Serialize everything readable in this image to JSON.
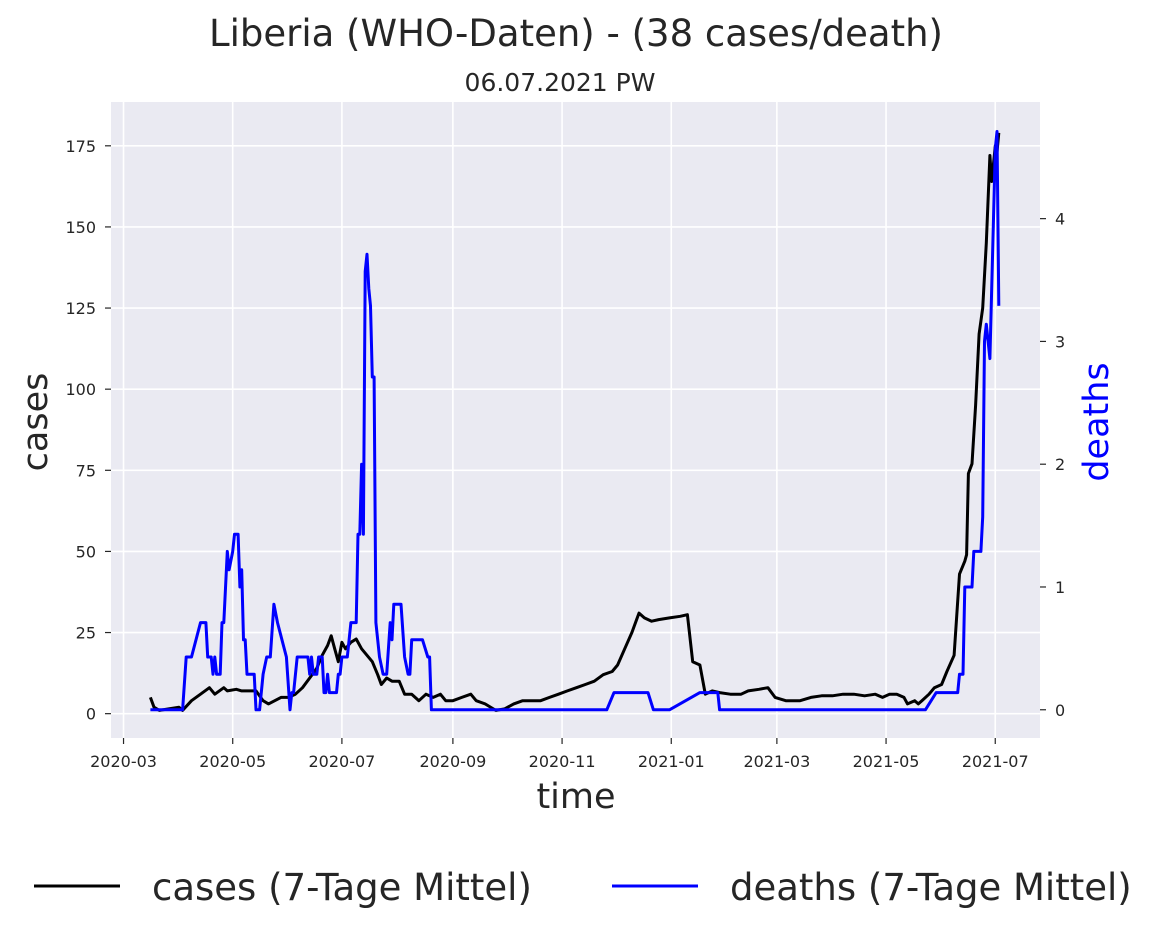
{
  "chart_data": {
    "type": "line",
    "title": "Liberia (WHO-Daten) - (38 cases/death)",
    "subtitle": "06.07.2021 PW",
    "xlabel": "time",
    "ylabel": "cases",
    "y2label": "deaths",
    "x_ticks": [
      "2020-03",
      "2020-05",
      "2020-07",
      "2020-09",
      "2020-11",
      "2021-01",
      "2021-03",
      "2021-05",
      "2021-07"
    ],
    "xlim": [
      "2020-02-23",
      "2021-07-26"
    ],
    "y_ticks": [
      0,
      25,
      50,
      75,
      100,
      125,
      150,
      175
    ],
    "ylim": [
      -7.5,
      188.5
    ],
    "y2_ticks": [
      0,
      1,
      2,
      3,
      4
    ],
    "y2lim": [
      -0.23,
      4.95
    ],
    "grid": true,
    "legend_position": "bottom-center",
    "colors": {
      "cases": "#000000",
      "deaths": "#0000ff",
      "plot_bg": "#eaeaf2",
      "grid": "#ffffff"
    },
    "series": [
      {
        "name": "cases (7-Tage Mittel)",
        "axis": "left",
        "points": [
          [
            "2020-03-16",
            5
          ],
          [
            "2020-03-18",
            2
          ],
          [
            "2020-03-21",
            1
          ],
          [
            "2020-04-01",
            2
          ],
          [
            "2020-04-03",
            1
          ],
          [
            "2020-04-08",
            4
          ],
          [
            "2020-04-13",
            6
          ],
          [
            "2020-04-18",
            8
          ],
          [
            "2020-04-21",
            6
          ],
          [
            "2020-04-26",
            8
          ],
          [
            "2020-04-28",
            7
          ],
          [
            "2020-05-03",
            7.5
          ],
          [
            "2020-05-06",
            7
          ],
          [
            "2020-05-10",
            7
          ],
          [
            "2020-05-14",
            7
          ],
          [
            "2020-05-18",
            4
          ],
          [
            "2020-05-21",
            3
          ],
          [
            "2020-05-28",
            5
          ],
          [
            "2020-06-01",
            5
          ],
          [
            "2020-06-05",
            6
          ],
          [
            "2020-06-09",
            8
          ],
          [
            "2020-06-13",
            11
          ],
          [
            "2020-06-17",
            14
          ],
          [
            "2020-06-20",
            18
          ],
          [
            "2020-06-23",
            21
          ],
          [
            "2020-06-25",
            24
          ],
          [
            "2020-06-27",
            20
          ],
          [
            "2020-06-29",
            16
          ],
          [
            "2020-07-01",
            22
          ],
          [
            "2020-07-03",
            20
          ],
          [
            "2020-07-06",
            22
          ],
          [
            "2020-07-09",
            23
          ],
          [
            "2020-07-12",
            20
          ],
          [
            "2020-07-15",
            18
          ],
          [
            "2020-07-18",
            16
          ],
          [
            "2020-07-21",
            12
          ],
          [
            "2020-07-23",
            9
          ],
          [
            "2020-07-26",
            11
          ],
          [
            "2020-07-29",
            10
          ],
          [
            "2020-08-02",
            10
          ],
          [
            "2020-08-05",
            6
          ],
          [
            "2020-08-09",
            6
          ],
          [
            "2020-08-13",
            4
          ],
          [
            "2020-08-17",
            6
          ],
          [
            "2020-08-21",
            5
          ],
          [
            "2020-08-25",
            6
          ],
          [
            "2020-08-28",
            4
          ],
          [
            "2020-09-01",
            4
          ],
          [
            "2020-09-06",
            5
          ],
          [
            "2020-09-11",
            6
          ],
          [
            "2020-09-14",
            4
          ],
          [
            "2020-09-19",
            3
          ],
          [
            "2020-09-25",
            1
          ],
          [
            "2020-09-30",
            1.5
          ],
          [
            "2020-10-05",
            3
          ],
          [
            "2020-10-10",
            4
          ],
          [
            "2020-10-15",
            4
          ],
          [
            "2020-10-20",
            4
          ],
          [
            "2020-10-25",
            5
          ],
          [
            "2020-10-30",
            6
          ],
          [
            "2020-11-04",
            7
          ],
          [
            "2020-11-09",
            8
          ],
          [
            "2020-11-14",
            9
          ],
          [
            "2020-11-19",
            10
          ],
          [
            "2020-11-24",
            12
          ],
          [
            "2020-11-29",
            13
          ],
          [
            "2020-12-02",
            15
          ],
          [
            "2020-12-06",
            20
          ],
          [
            "2020-12-10",
            25
          ],
          [
            "2020-12-14",
            31
          ],
          [
            "2020-12-17",
            29.5
          ],
          [
            "2020-12-21",
            28.5
          ],
          [
            "2020-12-25",
            29
          ],
          [
            "2020-12-31",
            29.5
          ],
          [
            "2021-01-06",
            30
          ],
          [
            "2021-01-10",
            30.5
          ],
          [
            "2021-01-13",
            16
          ],
          [
            "2021-01-17",
            15
          ],
          [
            "2021-01-20",
            6
          ],
          [
            "2021-01-24",
            7
          ],
          [
            "2021-01-28",
            6.5
          ],
          [
            "2021-02-03",
            6
          ],
          [
            "2021-02-09",
            6
          ],
          [
            "2021-02-13",
            7
          ],
          [
            "2021-02-19",
            7.5
          ],
          [
            "2021-02-24",
            8
          ],
          [
            "2021-02-28",
            5
          ],
          [
            "2021-03-06",
            4
          ],
          [
            "2021-03-14",
            4
          ],
          [
            "2021-03-20",
            5
          ],
          [
            "2021-03-26",
            5.5
          ],
          [
            "2021-04-01",
            5.5
          ],
          [
            "2021-04-07",
            6
          ],
          [
            "2021-04-13",
            6
          ],
          [
            "2021-04-19",
            5.5
          ],
          [
            "2021-04-25",
            6
          ],
          [
            "2021-04-29",
            5
          ],
          [
            "2021-05-03",
            6
          ],
          [
            "2021-05-07",
            6
          ],
          [
            "2021-05-11",
            5
          ],
          [
            "2021-05-13",
            3
          ],
          [
            "2021-05-17",
            4
          ],
          [
            "2021-05-19",
            3
          ],
          [
            "2021-05-21",
            4
          ],
          [
            "2021-05-25",
            6
          ],
          [
            "2021-05-28",
            8
          ],
          [
            "2021-06-01",
            9
          ],
          [
            "2021-06-04",
            13
          ],
          [
            "2021-06-08",
            18
          ],
          [
            "2021-06-11",
            43
          ],
          [
            "2021-06-14",
            47
          ],
          [
            "2021-06-15",
            49
          ],
          [
            "2021-06-16",
            74
          ],
          [
            "2021-06-18",
            77
          ],
          [
            "2021-06-20",
            95
          ],
          [
            "2021-06-22",
            117
          ],
          [
            "2021-06-24",
            125
          ],
          [
            "2021-06-26",
            145
          ],
          [
            "2021-06-28",
            172
          ],
          [
            "2021-06-29",
            164
          ],
          [
            "2021-07-01",
            175
          ],
          [
            "2021-07-02",
            173
          ],
          [
            "2021-07-03",
            179
          ]
        ]
      },
      {
        "name": "deaths (7-Tage Mittel)",
        "axis": "right",
        "points": [
          [
            "2020-03-16",
            0
          ],
          [
            "2020-04-03",
            0
          ],
          [
            "2020-04-05",
            0.43
          ],
          [
            "2020-04-08",
            0.43
          ],
          [
            "2020-04-13",
            0.71
          ],
          [
            "2020-04-16",
            0.71
          ],
          [
            "2020-04-17",
            0.43
          ],
          [
            "2020-04-19",
            0.43
          ],
          [
            "2020-04-20",
            0.29
          ],
          [
            "2020-04-21",
            0.43
          ],
          [
            "2020-04-22",
            0.29
          ],
          [
            "2020-04-24",
            0.29
          ],
          [
            "2020-04-25",
            0.71
          ],
          [
            "2020-04-26",
            0.71
          ],
          [
            "2020-04-28",
            1.29
          ],
          [
            "2020-04-29",
            1.14
          ],
          [
            "2020-05-01",
            1.29
          ],
          [
            "2020-05-02",
            1.43
          ],
          [
            "2020-05-04",
            1.43
          ],
          [
            "2020-05-05",
            1.0
          ],
          [
            "2020-05-06",
            1.14
          ],
          [
            "2020-05-07",
            0.57
          ],
          [
            "2020-05-08",
            0.57
          ],
          [
            "2020-05-09",
            0.29
          ],
          [
            "2020-05-13",
            0.29
          ],
          [
            "2020-05-14",
            0
          ],
          [
            "2020-05-16",
            0
          ],
          [
            "2020-05-18",
            0.29
          ],
          [
            "2020-05-20",
            0.43
          ],
          [
            "2020-05-22",
            0.43
          ],
          [
            "2020-05-24",
            0.86
          ],
          [
            "2020-05-26",
            0.71
          ],
          [
            "2020-05-31",
            0.43
          ],
          [
            "2020-06-02",
            0
          ],
          [
            "2020-06-03",
            0.14
          ],
          [
            "2020-06-04",
            0.14
          ],
          [
            "2020-06-06",
            0.43
          ],
          [
            "2020-06-12",
            0.43
          ],
          [
            "2020-06-13",
            0.29
          ],
          [
            "2020-06-14",
            0.43
          ],
          [
            "2020-06-15",
            0.29
          ],
          [
            "2020-06-17",
            0.29
          ],
          [
            "2020-06-18",
            0.43
          ],
          [
            "2020-06-20",
            0.43
          ],
          [
            "2020-06-21",
            0.14
          ],
          [
            "2020-06-22",
            0.14
          ],
          [
            "2020-06-23",
            0.29
          ],
          [
            "2020-06-24",
            0.14
          ],
          [
            "2020-06-28",
            0.14
          ],
          [
            "2020-06-29",
            0.29
          ],
          [
            "2020-06-30",
            0.29
          ],
          [
            "2020-07-01",
            0.43
          ],
          [
            "2020-07-04",
            0.43
          ],
          [
            "2020-07-06",
            0.71
          ],
          [
            "2020-07-09",
            0.71
          ],
          [
            "2020-07-10",
            1.43
          ],
          [
            "2020-07-11",
            1.43
          ],
          [
            "2020-07-12",
            2.0
          ],
          [
            "2020-07-13",
            1.43
          ],
          [
            "2020-07-14",
            3.57
          ],
          [
            "2020-07-15",
            3.71
          ],
          [
            "2020-07-16",
            3.43
          ],
          [
            "2020-07-17",
            3.29
          ],
          [
            "2020-07-18",
            2.71
          ],
          [
            "2020-07-19",
            2.71
          ],
          [
            "2020-07-20",
            0.71
          ],
          [
            "2020-07-22",
            0.43
          ],
          [
            "2020-07-24",
            0.29
          ],
          [
            "2020-07-26",
            0.29
          ],
          [
            "2020-07-28",
            0.71
          ],
          [
            "2020-07-29",
            0.57
          ],
          [
            "2020-07-30",
            0.86
          ],
          [
            "2020-08-03",
            0.86
          ],
          [
            "2020-08-05",
            0.43
          ],
          [
            "2020-08-07",
            0.29
          ],
          [
            "2020-08-08",
            0.29
          ],
          [
            "2020-08-09",
            0.57
          ],
          [
            "2020-08-15",
            0.57
          ],
          [
            "2020-08-18",
            0.43
          ],
          [
            "2020-08-19",
            0.43
          ],
          [
            "2020-08-20",
            0
          ],
          [
            "2020-11-26",
            0
          ],
          [
            "2020-11-30",
            0.14
          ],
          [
            "2020-12-19",
            0.14
          ],
          [
            "2020-12-22",
            0
          ],
          [
            "2020-12-31",
            0
          ],
          [
            "2021-01-17",
            0.14
          ],
          [
            "2021-01-27",
            0.14
          ],
          [
            "2021-01-28",
            0
          ],
          [
            "2021-05-23",
            0
          ],
          [
            "2021-05-29",
            0.14
          ],
          [
            "2021-06-10",
            0.14
          ],
          [
            "2021-06-11",
            0.29
          ],
          [
            "2021-06-13",
            0.29
          ],
          [
            "2021-06-14",
            1.0
          ],
          [
            "2021-06-18",
            1.0
          ],
          [
            "2021-06-19",
            1.29
          ],
          [
            "2021-06-23",
            1.29
          ],
          [
            "2021-06-24",
            1.57
          ],
          [
            "2021-06-25",
            3.0
          ],
          [
            "2021-06-26",
            3.14
          ],
          [
            "2021-06-27",
            3.0
          ],
          [
            "2021-06-28",
            2.86
          ],
          [
            "2021-06-29",
            3.43
          ],
          [
            "2021-06-30",
            4.0
          ],
          [
            "2021-07-01",
            4.57
          ],
          [
            "2021-07-02",
            4.71
          ],
          [
            "2021-07-03",
            3.29
          ]
        ]
      }
    ]
  }
}
